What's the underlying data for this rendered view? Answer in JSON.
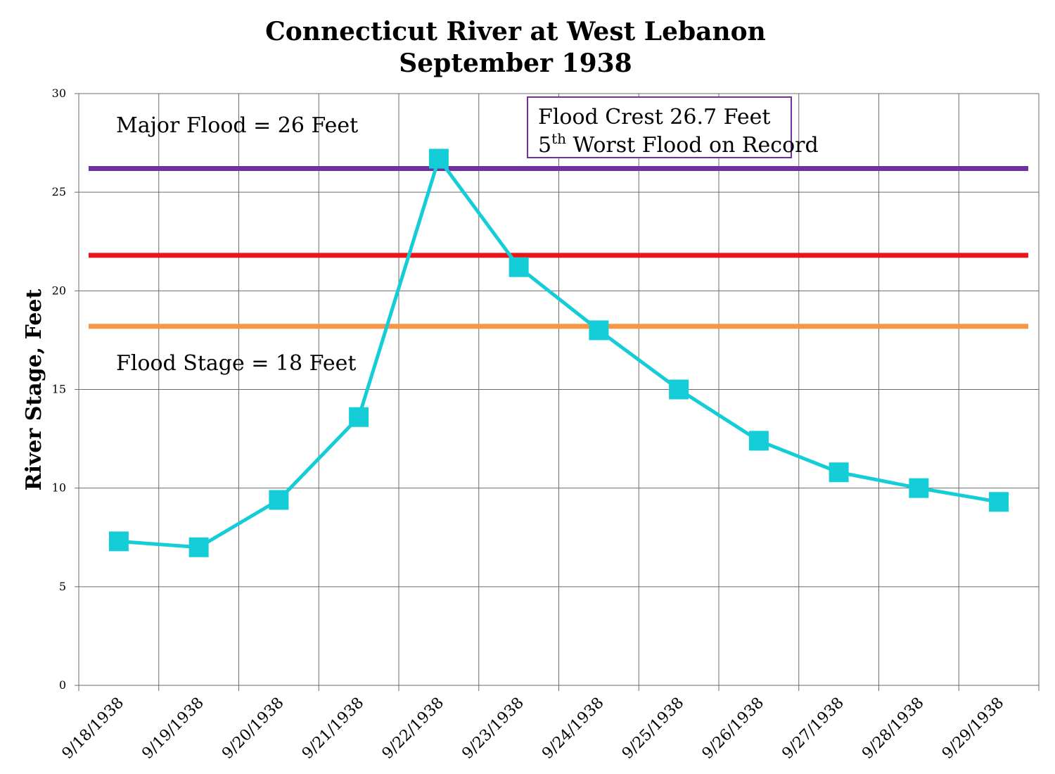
{
  "chart_data": {
    "type": "line",
    "title": [
      "Connecticut River at West Lebanon",
      "September 1938"
    ],
    "xlabel": "",
    "ylabel": "River Stage, Feet",
    "ylim": [
      0,
      30
    ],
    "yticks": [
      "0",
      "5",
      "10",
      "15",
      "20",
      "25",
      "30"
    ],
    "grid": true,
    "categories": [
      "9/18/1938",
      "9/19/1938",
      "9/20/1938",
      "9/21/1938",
      "9/22/1938",
      "9/23/1938",
      "9/24/1938",
      "9/25/1938",
      "9/26/1938",
      "9/27/1938",
      "9/28/1938",
      "9/29/1938"
    ],
    "series": [
      {
        "values": [
          7.3,
          7.0,
          9.4,
          13.6,
          26.7,
          21.2,
          18.0,
          15.0,
          12.4,
          10.8,
          10.0,
          9.3
        ],
        "color": "#14cdd6"
      }
    ],
    "reference_lines": [
      {
        "value": 26.2,
        "color": "#7030a0"
      },
      {
        "value": 21.8,
        "color": "#e8161b"
      },
      {
        "value": 18.2,
        "color": "#f79646"
      }
    ],
    "annotations": {
      "major_flood": "Major Flood = 26 Feet",
      "flood_stage": "Flood Stage = 18 Feet",
      "crest_line1": "Flood Crest 26.7 Feet",
      "crest_line2_num": "5",
      "crest_line2_sup": "th",
      "crest_line2_rest": " Worst Flood on Record",
      "crest_box_color": "#7030a0"
    }
  }
}
